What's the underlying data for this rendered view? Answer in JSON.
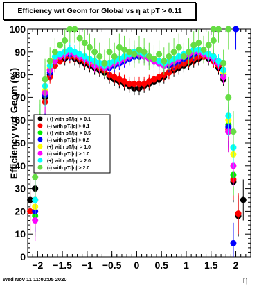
{
  "title": "Efficiency wrt Geom for Global vs   η at pT > 0.11",
  "footer": "Wed Nov 11 11:00:05 2020",
  "chart_data": {
    "type": "scatter",
    "title": "Efficiency wrt Geom for Global vs   η at pT > 0.11",
    "xlabel": "η",
    "ylabel": "Efficiency wrt Geom (%)",
    "xlim": [
      -2.2,
      2.3
    ],
    "ylim": [
      0,
      100
    ],
    "xticks": [
      -2,
      -1.5,
      -1,
      -0.5,
      0,
      0.5,
      1,
      1.5,
      2
    ],
    "xtick_labels": [
      "−2",
      "−1.5",
      "−1",
      "−0.5",
      "0",
      "0.5",
      "1",
      "1.5",
      "2"
    ],
    "yticks": [
      0,
      10,
      20,
      30,
      40,
      50,
      60,
      70,
      80,
      90,
      100
    ],
    "grid": false,
    "legend_position": "left-middle",
    "series": [
      {
        "name": "(+) with pT/|q| > 0.1",
        "color": "#000000",
        "x": [
          -2.15,
          -2.05,
          -1.95,
          -1.85,
          -1.75,
          -1.65,
          -1.55,
          -1.45,
          -1.35,
          -1.25,
          -1.15,
          -1.05,
          -0.95,
          -0.85,
          -0.75,
          -0.65,
          -0.55,
          -0.45,
          -0.35,
          -0.25,
          -0.15,
          -0.05,
          0.05,
          0.15,
          0.25,
          0.35,
          0.45,
          0.55,
          0.65,
          0.75,
          0.85,
          0.95,
          1.05,
          1.15,
          1.25,
          1.35,
          1.45,
          1.55,
          1.65,
          1.75,
          1.85,
          1.95,
          2.05,
          2.15
        ],
        "y": [
          25,
          30,
          52,
          70,
          80,
          84,
          86,
          87,
          88,
          87,
          86,
          85,
          84,
          83,
          82,
          81,
          79,
          78,
          77,
          76,
          75,
          74,
          74,
          75,
          76,
          77,
          78,
          79,
          81,
          82,
          83,
          84,
          85,
          86,
          87,
          88,
          87,
          86,
          83,
          78,
          55,
          33,
          18,
          25
        ]
      },
      {
        "name": "(-) with pT/|q| > 0.1",
        "color": "#ff0000",
        "x": [
          -2.15,
          -2.05,
          -1.95,
          -1.85,
          -1.75,
          -1.65,
          -1.55,
          -1.45,
          -1.35,
          -1.25,
          -1.15,
          -1.05,
          -0.95,
          -0.85,
          -0.75,
          -0.65,
          -0.55,
          -0.45,
          -0.35,
          -0.25,
          -0.15,
          -0.05,
          0.05,
          0.15,
          0.25,
          0.35,
          0.45,
          0.55,
          0.65,
          0.75,
          0.85,
          0.95,
          1.05,
          1.15,
          1.25,
          1.35,
          1.45,
          1.55,
          1.65,
          1.75,
          1.85,
          1.95,
          2.05
        ],
        "y": [
          20,
          25,
          50,
          68,
          79,
          84,
          86,
          88,
          88,
          88,
          87,
          86,
          85,
          84,
          83,
          82,
          80,
          79,
          78,
          77,
          76,
          76,
          76,
          76,
          77,
          78,
          79,
          80,
          81,
          83,
          84,
          85,
          86,
          87,
          88,
          88,
          88,
          86,
          84,
          79,
          56,
          34,
          19
        ]
      },
      {
        "name": "(+) with pT/|q| > 0.5",
        "color": "#00ee00",
        "x": [
          -2.05,
          -1.95,
          -1.85,
          -1.75,
          -1.65,
          -1.55,
          -1.45,
          -1.35,
          -1.25,
          -1.15,
          -1.05,
          -0.95,
          -0.85,
          -0.75,
          -0.65,
          -0.55,
          -0.45,
          -0.35,
          -0.25,
          -0.15,
          -0.05,
          0.05,
          0.15,
          0.25,
          0.35,
          0.45,
          0.55,
          0.65,
          0.75,
          0.85,
          0.95,
          1.05,
          1.15,
          1.25,
          1.35,
          1.45,
          1.55,
          1.65,
          1.75,
          1.85,
          1.95
        ],
        "y": [
          18,
          55,
          72,
          82,
          86,
          88,
          89,
          90,
          89,
          88,
          87,
          86,
          85,
          84,
          83,
          84,
          85,
          86,
          87,
          88,
          89,
          90,
          89,
          88,
          87,
          86,
          85,
          84,
          85,
          86,
          87,
          88,
          89,
          90,
          90,
          89,
          88,
          85,
          80,
          58,
          36
        ]
      },
      {
        "name": "(-) with pT/|q| > 0.5",
        "color": "#0000ff",
        "x": [
          -2.05,
          -1.95,
          -1.85,
          -1.75,
          -1.65,
          -1.55,
          -1.45,
          -1.35,
          -1.25,
          -1.15,
          -1.05,
          -0.95,
          -0.85,
          -0.75,
          -0.65,
          -0.55,
          -0.45,
          -0.35,
          -0.25,
          -0.15,
          -0.05,
          0.05,
          0.15,
          0.25,
          0.35,
          0.45,
          0.55,
          0.65,
          0.75,
          0.85,
          0.95,
          1.05,
          1.15,
          1.25,
          1.35,
          1.45,
          1.55,
          1.65,
          1.75,
          1.85,
          1.95,
          2.0
        ],
        "y": [
          20,
          54,
          71,
          81,
          86,
          88,
          89,
          89,
          89,
          88,
          87,
          86,
          85,
          84,
          83,
          83,
          84,
          85,
          86,
          87,
          88,
          88,
          88,
          87,
          86,
          85,
          84,
          84,
          85,
          86,
          87,
          88,
          89,
          90,
          90,
          89,
          88,
          85,
          80,
          57,
          6,
          100
        ]
      },
      {
        "name": "(+) with pT/|q| > 1.0",
        "color": "#ffff00",
        "x": [
          -2.05,
          -1.95,
          -1.85,
          -1.75,
          -1.65,
          -1.55,
          -1.45,
          -1.35,
          -1.25,
          -1.15,
          -1.05,
          -0.95,
          -0.85,
          -0.75,
          -0.65,
          -0.55,
          -0.45,
          -0.35,
          -0.25,
          -0.15,
          -0.05,
          0.05,
          0.15,
          0.25,
          0.35,
          0.45,
          0.55,
          0.65,
          0.75,
          0.85,
          0.95,
          1.05,
          1.15,
          1.25,
          1.35,
          1.45,
          1.55,
          1.65,
          1.75,
          1.85,
          1.95
        ],
        "y": [
          22,
          56,
          73,
          83,
          87,
          89,
          90,
          90,
          89,
          88,
          87,
          86,
          85,
          84,
          84,
          85,
          86,
          87,
          88,
          89,
          90,
          90,
          89,
          88,
          87,
          86,
          85,
          85,
          86,
          87,
          88,
          89,
          90,
          91,
          90,
          89,
          88,
          86,
          81,
          60,
          45
        ]
      },
      {
        "name": "(-) with pT/|q| > 1.0",
        "color": "#ff00ff",
        "x": [
          -2.05,
          -1.95,
          -1.85,
          -1.75,
          -1.65,
          -1.55,
          -1.45,
          -1.35,
          -1.25,
          -1.15,
          -1.05,
          -0.95,
          -0.85,
          -0.75,
          -0.65,
          -0.55,
          -0.45,
          -0.35,
          -0.25,
          -0.15,
          -0.05,
          0.05,
          0.15,
          0.25,
          0.35,
          0.45,
          0.55,
          0.65,
          0.75,
          0.85,
          0.95,
          1.05,
          1.15,
          1.25,
          1.35,
          1.45,
          1.55,
          1.65,
          1.75,
          1.85,
          1.95
        ],
        "y": [
          16,
          53,
          72,
          82,
          86,
          88,
          89,
          90,
          89,
          88,
          87,
          86,
          84,
          84,
          83,
          84,
          85,
          86,
          87,
          88,
          89,
          89,
          88,
          87,
          86,
          85,
          84,
          85,
          86,
          87,
          88,
          89,
          90,
          90,
          89,
          88,
          87,
          85,
          79,
          55,
          40
        ]
      },
      {
        "name": "(+) with pT/|q| > 2.0",
        "color": "#00ffff",
        "x": [
          -2.05,
          -1.95,
          -1.85,
          -1.75,
          -1.65,
          -1.55,
          -1.45,
          -1.35,
          -1.25,
          -1.15,
          -1.05,
          -0.95,
          -0.85,
          -0.75,
          -0.65,
          -0.55,
          -0.45,
          -0.35,
          -0.25,
          -0.15,
          -0.05,
          0.05,
          0.15,
          0.25,
          0.35,
          0.45,
          0.55,
          0.65,
          0.75,
          0.85,
          0.95,
          1.05,
          1.15,
          1.25,
          1.35,
          1.45,
          1.55,
          1.65,
          1.75,
          1.85,
          1.95
        ],
        "y": [
          25,
          58,
          75,
          84,
          88,
          89,
          90,
          91,
          90,
          89,
          88,
          87,
          86,
          85,
          84,
          85,
          86,
          87,
          88,
          89,
          90,
          90,
          89,
          88,
          87,
          86,
          85,
          86,
          87,
          88,
          89,
          90,
          91,
          91,
          90,
          89,
          88,
          86,
          82,
          62,
          48
        ]
      },
      {
        "name": "(-) with pT/|q| > 2.0",
        "color": "#66dd44",
        "x": [
          -2.05,
          -1.95,
          -1.85,
          -1.75,
          -1.65,
          -1.55,
          -1.45,
          -1.35,
          -1.25,
          -1.15,
          -1.05,
          -0.95,
          -0.85,
          -0.75,
          -0.65,
          -0.55,
          -0.45,
          -0.35,
          -0.25,
          -0.15,
          -0.05,
          0.05,
          0.15,
          0.25,
          0.35,
          0.45,
          0.55,
          0.65,
          0.75,
          0.85,
          0.95,
          1.05,
          1.15,
          1.25,
          1.35,
          1.45,
          1.55,
          1.65,
          1.75,
          1.85,
          1.95,
          1.85,
          1.55
        ],
        "y": [
          35,
          60,
          78,
          86,
          90,
          93,
          95,
          100,
          100,
          96,
          94,
          92,
          90,
          88,
          85,
          90,
          88,
          92,
          91,
          90,
          89,
          91,
          90,
          88,
          87,
          89,
          86,
          88,
          90,
          92,
          88,
          90,
          93,
          94,
          91,
          93,
          95,
          100,
          85,
          70,
          55,
          100,
          100
        ]
      }
    ]
  }
}
